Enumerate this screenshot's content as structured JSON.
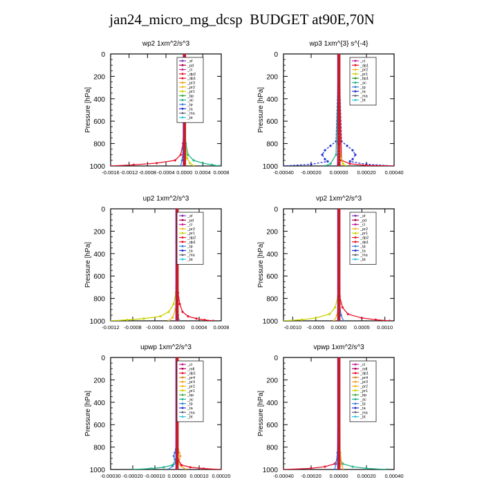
{
  "title": "jan24_micro_mg_dcsp  BUDGET at90E,70N",
  "colors": {
    "_sf": "#7a2bb5",
    "_pd": "#b0004a",
    "_cl": "#c41c9c",
    "_dp2": "#e4172e",
    "_dp1": "#e8112a",
    "_dp4": "#c8102e",
    "_pr4": "#d98a1e",
    "_pr3": "#f0a020",
    "_pr2": "#f4b820",
    "_pr1": "#c8d400",
    "_bp1": "#2a9a2a",
    "_bp": "#3caa3c",
    "_ac": "#1fb48a",
    "_tp": "#3a7de0",
    "_ta": "#1f2fd4",
    "_ma": "#6a6a7a",
    "_bt": "#2ec4e0",
    "_mfl": "#b50060",
    "_pl": "#8a2be2"
  },
  "chart_data": [
    {
      "type": "line",
      "title": "wp2   1xm^2/s^3",
      "ylabel": "Pressure  [hPa]",
      "ylim": [
        1000,
        0
      ],
      "yticks": [
        "0",
        "200",
        "400",
        "600",
        "800",
        "1000"
      ],
      "xlim": [
        -0.0016,
        0.0008
      ],
      "xticks": [
        "-0.0016",
        "-0.0012",
        "-0.0008",
        "-0.0004",
        "0.0000",
        "0.0004",
        "0.0008"
      ],
      "legend": [
        "_sf",
        "_pd",
        "_cl",
        "_dp2",
        "_dp1",
        "_pr3",
        "_pr2",
        "_pr1",
        "_bp",
        "_ac",
        "_tp",
        "_ta",
        "_ma",
        "_bt"
      ],
      "legend_location": "top-right",
      "series": [
        {
          "key": "_dp1",
          "x": [
            0,
            -1e-05,
            -3e-05,
            -8e-05,
            -0.0002,
            -0.0006,
            -0.0011,
            -0.0016
          ],
          "y": [
            0,
            600,
            800,
            900,
            950,
            975,
            990,
            1000
          ]
        },
        {
          "key": "_ac",
          "x": [
            0,
            1e-05,
            3e-05,
            8e-05,
            0.0002,
            0.0004,
            0.0006,
            0.00075
          ],
          "y": [
            0,
            600,
            800,
            900,
            950,
            975,
            990,
            1000
          ]
        },
        {
          "key": "_pr1",
          "x": [
            0,
            1e-05,
            3e-05,
            6e-05,
            0.00012,
            0.0002
          ],
          "y": [
            0,
            700,
            850,
            930,
            975,
            1000
          ]
        },
        {
          "key": "_tp",
          "x": [
            0,
            -1e-05,
            -3e-05,
            -5e-05,
            -8e-05
          ],
          "y": [
            0,
            700,
            850,
            950,
            1000
          ]
        },
        {
          "key": "_sf",
          "x": [
            0,
            5e-06,
            1e-05,
            1.5e-05,
            2e-05
          ],
          "y": [
            0,
            500,
            800,
            950,
            1000
          ]
        },
        {
          "key": "_cl",
          "x": [
            0,
            -5e-06,
            -1e-05,
            -1.5e-05,
            -2e-05
          ],
          "y": [
            0,
            500,
            800,
            950,
            1000
          ]
        }
      ]
    },
    {
      "type": "line",
      "title": "wp3   1xm^{3} s^{-4}",
      "ylabel": "Pressure  [hPa]",
      "ylim": [
        1000,
        0
      ],
      "yticks": [
        "0",
        "200",
        "400",
        "600",
        "800",
        "1000"
      ],
      "xlim": [
        -0.0004,
        0.0004
      ],
      "xticks": [
        "-0.00040",
        "-0.00020",
        "0.00000",
        "0.00020",
        "0.00040"
      ],
      "legend": [
        "_cl",
        "_dp1",
        "_pr2",
        "_pr1",
        "_bp1",
        "_ac",
        "_tp",
        "_ta",
        "_ma",
        "_bt"
      ],
      "legend_location": "top-right",
      "series": [
        {
          "key": "_ta",
          "x": [
            0,
            -2e-05,
            -6e-05,
            -0.0001,
            -0.00012,
            -0.0001,
            -8e-05,
            -0.0002,
            -0.0004
          ],
          "y": [
            0,
            780,
            820,
            860,
            900,
            940,
            960,
            985,
            1000
          ]
        },
        {
          "key": "_ta",
          "x": [
            0,
            2e-05,
            6e-05,
            0.0001,
            0.00012,
            0.0001,
            8e-05,
            0.0002,
            0.0004
          ],
          "y": [
            0,
            780,
            820,
            860,
            900,
            940,
            960,
            985,
            1000
          ]
        },
        {
          "key": "_dp1",
          "x": [
            0,
            2e-05,
            8e-05,
            0.0002,
            0.0004
          ],
          "y": [
            0,
            950,
            980,
            995,
            1000
          ]
        },
        {
          "key": "_ac",
          "x": [
            0,
            -2e-05,
            -6e-05,
            -0.0001
          ],
          "y": [
            0,
            900,
            980,
            1000
          ]
        },
        {
          "key": "_pr1",
          "x": [
            0,
            1e-05,
            3e-05,
            5e-05
          ],
          "y": [
            0,
            900,
            980,
            1000
          ]
        },
        {
          "key": "_cl",
          "x": [
            0,
            -5e-06,
            -1e-05
          ],
          "y": [
            0,
            800,
            1000
          ]
        },
        {
          "key": "_dp2",
          "x": [
            0,
            5e-06,
            1e-05
          ],
          "y": [
            0,
            800,
            1000
          ]
        }
      ]
    },
    {
      "type": "line",
      "title": "up2   1xm^2/s^3",
      "ylabel": "Pressure  [hPa]",
      "ylim": [
        1000,
        0
      ],
      "yticks": [
        "0",
        "200",
        "400",
        "600",
        "800",
        "1000"
      ],
      "xlim": [
        -0.0012,
        0.0008
      ],
      "xticks": [
        "-0.0012",
        "-0.0008",
        "-0.0004",
        "0.0000",
        "0.0004",
        "0.0008"
      ],
      "legend": [
        "_sf",
        "_pd",
        "_cl",
        "_pr2",
        "_pr1",
        "_dp2",
        "_dp1",
        "_tp",
        "_ta",
        "_ma",
        "_bt"
      ],
      "legend_location": "top-right",
      "series": [
        {
          "key": "_pr1",
          "x": [
            0,
            -2e-05,
            -6e-05,
            -0.00015,
            -0.0003,
            -0.0006,
            -0.0009,
            -0.0012
          ],
          "y": [
            0,
            750,
            850,
            920,
            960,
            980,
            992,
            1000
          ]
        },
        {
          "key": "_dp1",
          "x": [
            0,
            2e-05,
            5e-05,
            0.0001,
            0.0002,
            0.00035,
            0.0005,
            0.00065
          ],
          "y": [
            0,
            750,
            850,
            920,
            960,
            980,
            992,
            1000
          ]
        },
        {
          "key": "_pr2",
          "x": [
            0,
            -1e-05,
            -3e-05,
            -8e-05,
            -0.00015
          ],
          "y": [
            0,
            800,
            900,
            970,
            1000
          ]
        },
        {
          "key": "_tp",
          "x": [
            0,
            1e-05,
            2e-05,
            4e-05
          ],
          "y": [
            0,
            850,
            950,
            1000
          ]
        },
        {
          "key": "_sf",
          "x": [
            0,
            -1e-05,
            -1e-05,
            -1e-05
          ],
          "y": [
            0,
            300,
            700,
            1000
          ]
        },
        {
          "key": "_pd",
          "x": [
            5e-06,
            5e-06,
            5e-06,
            5e-06
          ],
          "y": [
            0,
            300,
            700,
            1000
          ]
        },
        {
          "key": "_cl",
          "x": [
            -5e-06,
            -5e-06,
            -5e-06,
            -5e-06
          ],
          "y": [
            0,
            300,
            700,
            1000
          ]
        }
      ]
    },
    {
      "type": "line",
      "title": "vp2   1xm^2/s^3",
      "ylabel": "Pressure  [hPa]",
      "ylim": [
        1000,
        0
      ],
      "yticks": [
        "0",
        "200",
        "400",
        "600",
        "800",
        "1000"
      ],
      "xlim": [
        -0.0012,
        0.0012
      ],
      "xticks": [
        "-0.0010",
        "-0.0005",
        "0.0000",
        "0.0005",
        "0.0010"
      ],
      "legend": [
        "_sf",
        "_pd",
        "_cl",
        "_pr2",
        "_pr1",
        "_dp2",
        "_dp1",
        "_tp",
        "_ta",
        "_ma",
        "_bt"
      ],
      "legend_location": "top-right",
      "series": [
        {
          "key": "_pr1",
          "x": [
            0,
            -2e-05,
            -8e-05,
            -0.0002,
            -0.0005,
            -0.0008,
            -0.0012
          ],
          "y": [
            0,
            780,
            880,
            940,
            975,
            990,
            1000
          ]
        },
        {
          "key": "_dp1",
          "x": [
            0,
            2e-05,
            8e-05,
            0.0002,
            0.0005,
            0.0008,
            0.0011
          ],
          "y": [
            0,
            780,
            880,
            940,
            975,
            990,
            1000
          ]
        },
        {
          "key": "_pr2",
          "x": [
            0,
            -1e-05,
            -4e-05,
            -0.0001
          ],
          "y": [
            0,
            850,
            950,
            1000
          ]
        },
        {
          "key": "_tp",
          "x": [
            0,
            2e-05,
            5e-05,
            0.0001
          ],
          "y": [
            0,
            850,
            950,
            1000
          ]
        },
        {
          "key": "_sf",
          "x": [
            -1e-05,
            -1e-05,
            -1e-05,
            -1e-05
          ],
          "y": [
            0,
            300,
            700,
            1000
          ]
        },
        {
          "key": "_pd",
          "x": [
            1e-05,
            1e-05,
            1e-05,
            1e-05
          ],
          "y": [
            0,
            300,
            700,
            1000
          ]
        },
        {
          "key": "_cl",
          "x": [
            0,
            0,
            0,
            0
          ],
          "y": [
            0,
            300,
            700,
            1000
          ]
        }
      ]
    },
    {
      "type": "line",
      "title": "upwp   1xm^2/s^3",
      "ylabel": "Pressure  [hPa]",
      "ylim": [
        1000,
        0
      ],
      "yticks": [
        "0",
        "200",
        "400",
        "600",
        "800",
        "1000"
      ],
      "xlim": [
        -0.0003,
        0.0002
      ],
      "xticks": [
        "-0.00030",
        "-0.00020",
        "-0.00010",
        "0.00000",
        "0.00010",
        "0.00020"
      ],
      "legend": [
        "_cl",
        "_mfl",
        "_dp1",
        "_pr4",
        "_pr3",
        "_pr2",
        "_pr1",
        "_bp",
        "_ac",
        "_tp",
        "_ta",
        "_ma",
        "_bt"
      ],
      "legend_location": "top-right",
      "series": [
        {
          "key": "_pr3",
          "x": [
            0,
            5e-06,
            1e-05,
            1.5e-05,
            1e-05,
            5e-06,
            2e-05,
            4e-05
          ],
          "y": [
            0,
            820,
            850,
            880,
            910,
            940,
            970,
            1000
          ]
        },
        {
          "key": "_tp",
          "x": [
            0,
            -5e-06,
            -1e-05,
            -1.5e-05,
            -1e-05,
            -5e-06,
            -2e-05,
            -4e-05
          ],
          "y": [
            0,
            820,
            850,
            880,
            910,
            940,
            970,
            1000
          ]
        },
        {
          "key": "_dp1",
          "x": [
            0,
            2e-06,
            2e-05,
            6e-05,
            0.00012,
            0.0002
          ],
          "y": [
            0,
            900,
            960,
            980,
            992,
            1000
          ]
        },
        {
          "key": "_ac",
          "x": [
            0,
            -2e-06,
            -2e-05,
            -6e-05,
            -0.00012,
            -0.0002
          ],
          "y": [
            0,
            900,
            960,
            980,
            992,
            1000
          ]
        },
        {
          "key": "_mfl",
          "x": [
            0,
            0,
            0,
            0
          ],
          "y": [
            0,
            300,
            700,
            1000
          ]
        },
        {
          "key": "_cl",
          "x": [
            -2e-06,
            -2e-06,
            -2e-06,
            -2e-06
          ],
          "y": [
            0,
            300,
            700,
            1000
          ]
        }
      ]
    },
    {
      "type": "line",
      "title": "vpwp   1xm^2/s^3",
      "ylabel": "Pressure  [hPa]",
      "ylim": [
        1000,
        0
      ],
      "yticks": [
        "0",
        "200",
        "400",
        "600",
        "800",
        "1000"
      ],
      "xlim": [
        -0.0004,
        0.0004
      ],
      "xticks": [
        "-0.00040",
        "-0.00020",
        "0.00000",
        "0.00020",
        "0.00040"
      ],
      "legend": [
        "_cl",
        "_mfl",
        "_dp1",
        "_pr4",
        "_pr3",
        "_pr2",
        "_pr1",
        "_bp",
        "_ac",
        "_tp",
        "_ta",
        "_ma",
        "_bt"
      ],
      "legend_location": "top-right",
      "series": [
        {
          "key": "_dp1",
          "x": [
            0,
            -5e-06,
            -3e-05,
            -0.0001,
            -0.0002,
            -0.0004
          ],
          "y": [
            0,
            900,
            950,
            975,
            990,
            1000
          ]
        },
        {
          "key": "_ac",
          "x": [
            0,
            5e-06,
            3e-05,
            0.0001,
            0.0002,
            0.00035
          ],
          "y": [
            0,
            900,
            950,
            975,
            990,
            1000
          ]
        },
        {
          "key": "_tp",
          "x": [
            0,
            -1e-05,
            -2e-05,
            -3e-05
          ],
          "y": [
            0,
            850,
            950,
            1000
          ]
        },
        {
          "key": "_pr3",
          "x": [
            0,
            1e-05,
            2e-05,
            3e-05
          ],
          "y": [
            0,
            850,
            950,
            1000
          ]
        },
        {
          "key": "_mfl",
          "x": [
            0,
            0,
            0,
            0
          ],
          "y": [
            0,
            300,
            700,
            1000
          ]
        },
        {
          "key": "_cl",
          "x": [
            -3e-06,
            -3e-06,
            -3e-06,
            -3e-06
          ],
          "y": [
            0,
            300,
            700,
            1000
          ]
        }
      ]
    }
  ]
}
